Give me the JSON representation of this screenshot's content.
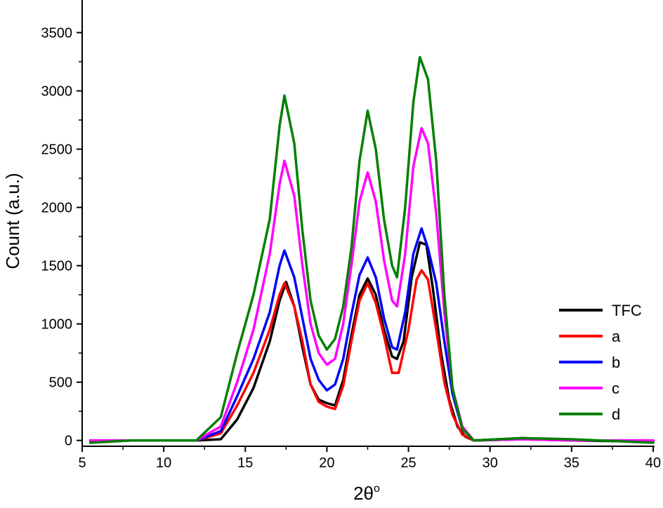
{
  "chart_data": {
    "type": "line",
    "xlabel": "2θ",
    "xlabel_sup": "o",
    "ylabel": "Count (a.u.)",
    "xlim": [
      5,
      40
    ],
    "ylim": [
      -50,
      3750
    ],
    "xticks": [
      5,
      10,
      15,
      20,
      25,
      30,
      35,
      40
    ],
    "yticks": [
      0,
      500,
      1000,
      1500,
      2000,
      2500,
      3000,
      3500
    ],
    "grid": false,
    "legend": "right",
    "series": [
      {
        "name": "TFC",
        "color": "#000000",
        "points": [
          [
            5.5,
            -10
          ],
          [
            8,
            0
          ],
          [
            12,
            0
          ],
          [
            13.5,
            10
          ],
          [
            14.5,
            180
          ],
          [
            15.5,
            450
          ],
          [
            16.5,
            850
          ],
          [
            17.1,
            1200
          ],
          [
            17.5,
            1360
          ],
          [
            18,
            1150
          ],
          [
            18.5,
            800
          ],
          [
            19,
            480
          ],
          [
            19.5,
            350
          ],
          [
            20,
            320
          ],
          [
            20.5,
            300
          ],
          [
            21,
            520
          ],
          [
            21.5,
            900
          ],
          [
            22,
            1250
          ],
          [
            22.5,
            1390
          ],
          [
            23,
            1250
          ],
          [
            23.5,
            950
          ],
          [
            24,
            720
          ],
          [
            24.3,
            700
          ],
          [
            24.7,
            850
          ],
          [
            25.2,
            1400
          ],
          [
            25.7,
            1700
          ],
          [
            26.1,
            1680
          ],
          [
            26.5,
            1300
          ],
          [
            27,
            750
          ],
          [
            27.5,
            350
          ],
          [
            28,
            120
          ],
          [
            28.5,
            30
          ],
          [
            29,
            0
          ],
          [
            32,
            20
          ],
          [
            35,
            0
          ],
          [
            40,
            -10
          ]
        ]
      },
      {
        "name": "a",
        "color": "#ff0000",
        "points": [
          [
            5.5,
            0
          ],
          [
            8,
            0
          ],
          [
            12,
            0
          ],
          [
            13.5,
            60
          ],
          [
            14.5,
            300
          ],
          [
            15.5,
            580
          ],
          [
            16.5,
            950
          ],
          [
            17.1,
            1250
          ],
          [
            17.4,
            1350
          ],
          [
            18,
            1150
          ],
          [
            18.5,
            850
          ],
          [
            19,
            480
          ],
          [
            19.5,
            330
          ],
          [
            20,
            290
          ],
          [
            20.5,
            270
          ],
          [
            21,
            470
          ],
          [
            21.5,
            850
          ],
          [
            22,
            1200
          ],
          [
            22.5,
            1350
          ],
          [
            23,
            1180
          ],
          [
            23.5,
            900
          ],
          [
            24,
            580
          ],
          [
            24.4,
            580
          ],
          [
            25,
            950
          ],
          [
            25.5,
            1380
          ],
          [
            25.8,
            1460
          ],
          [
            26.2,
            1380
          ],
          [
            26.7,
            950
          ],
          [
            27.2,
            500
          ],
          [
            27.7,
            220
          ],
          [
            28.3,
            50
          ],
          [
            29,
            0
          ],
          [
            32,
            10
          ],
          [
            35,
            0
          ],
          [
            40,
            0
          ]
        ]
      },
      {
        "name": "b",
        "color": "#0000ff",
        "points": [
          [
            5.5,
            0
          ],
          [
            8,
            0
          ],
          [
            12,
            0
          ],
          [
            13.5,
            80
          ],
          [
            14.5,
            380
          ],
          [
            15.5,
            700
          ],
          [
            16.5,
            1100
          ],
          [
            17.1,
            1500
          ],
          [
            17.4,
            1630
          ],
          [
            18,
            1400
          ],
          [
            18.5,
            1050
          ],
          [
            19,
            700
          ],
          [
            19.5,
            520
          ],
          [
            20,
            430
          ],
          [
            20.5,
            480
          ],
          [
            21,
            700
          ],
          [
            21.5,
            1080
          ],
          [
            22,
            1420
          ],
          [
            22.5,
            1570
          ],
          [
            23,
            1400
          ],
          [
            23.5,
            1050
          ],
          [
            24,
            800
          ],
          [
            24.3,
            780
          ],
          [
            24.8,
            1100
          ],
          [
            25.3,
            1600
          ],
          [
            25.8,
            1820
          ],
          [
            26.2,
            1650
          ],
          [
            26.7,
            1350
          ],
          [
            27.2,
            850
          ],
          [
            27.7,
            400
          ],
          [
            28.3,
            100
          ],
          [
            29,
            0
          ],
          [
            32,
            10
          ],
          [
            35,
            0
          ],
          [
            40,
            0
          ]
        ]
      },
      {
        "name": "c",
        "color": "#ff00ff",
        "points": [
          [
            5.5,
            0
          ],
          [
            8,
            0
          ],
          [
            12,
            0
          ],
          [
            13.5,
            120
          ],
          [
            14.5,
            500
          ],
          [
            15.5,
            950
          ],
          [
            16.5,
            1600
          ],
          [
            17.1,
            2200
          ],
          [
            17.4,
            2400
          ],
          [
            18,
            2100
          ],
          [
            18.5,
            1500
          ],
          [
            19,
            1000
          ],
          [
            19.5,
            750
          ],
          [
            20,
            650
          ],
          [
            20.5,
            700
          ],
          [
            21,
            1000
          ],
          [
            21.5,
            1500
          ],
          [
            22,
            2050
          ],
          [
            22.5,
            2300
          ],
          [
            23,
            2050
          ],
          [
            23.5,
            1550
          ],
          [
            24,
            1200
          ],
          [
            24.3,
            1150
          ],
          [
            24.8,
            1600
          ],
          [
            25.3,
            2350
          ],
          [
            25.8,
            2680
          ],
          [
            26.2,
            2550
          ],
          [
            26.7,
            1950
          ],
          [
            27.2,
            1100
          ],
          [
            27.7,
            450
          ],
          [
            28.3,
            120
          ],
          [
            29,
            0
          ],
          [
            32,
            10
          ],
          [
            35,
            0
          ],
          [
            40,
            0
          ]
        ]
      },
      {
        "name": "d",
        "color": "#008000",
        "points": [
          [
            5.5,
            -20
          ],
          [
            8,
            0
          ],
          [
            12,
            0
          ],
          [
            13.5,
            200
          ],
          [
            14.5,
            750
          ],
          [
            15.5,
            1250
          ],
          [
            16.5,
            1900
          ],
          [
            17.1,
            2700
          ],
          [
            17.4,
            2960
          ],
          [
            18,
            2550
          ],
          [
            18.5,
            1800
          ],
          [
            19,
            1200
          ],
          [
            19.5,
            900
          ],
          [
            20,
            780
          ],
          [
            20.5,
            870
          ],
          [
            21,
            1150
          ],
          [
            21.5,
            1650
          ],
          [
            22,
            2400
          ],
          [
            22.5,
            2830
          ],
          [
            23,
            2500
          ],
          [
            23.5,
            1900
          ],
          [
            24,
            1500
          ],
          [
            24.3,
            1400
          ],
          [
            24.8,
            2000
          ],
          [
            25.3,
            2900
          ],
          [
            25.7,
            3290
          ],
          [
            26.2,
            3100
          ],
          [
            26.7,
            2400
          ],
          [
            27.2,
            1250
          ],
          [
            27.7,
            450
          ],
          [
            28.3,
            100
          ],
          [
            29,
            0
          ],
          [
            32,
            20
          ],
          [
            35,
            10
          ],
          [
            40,
            -20
          ]
        ]
      }
    ]
  }
}
